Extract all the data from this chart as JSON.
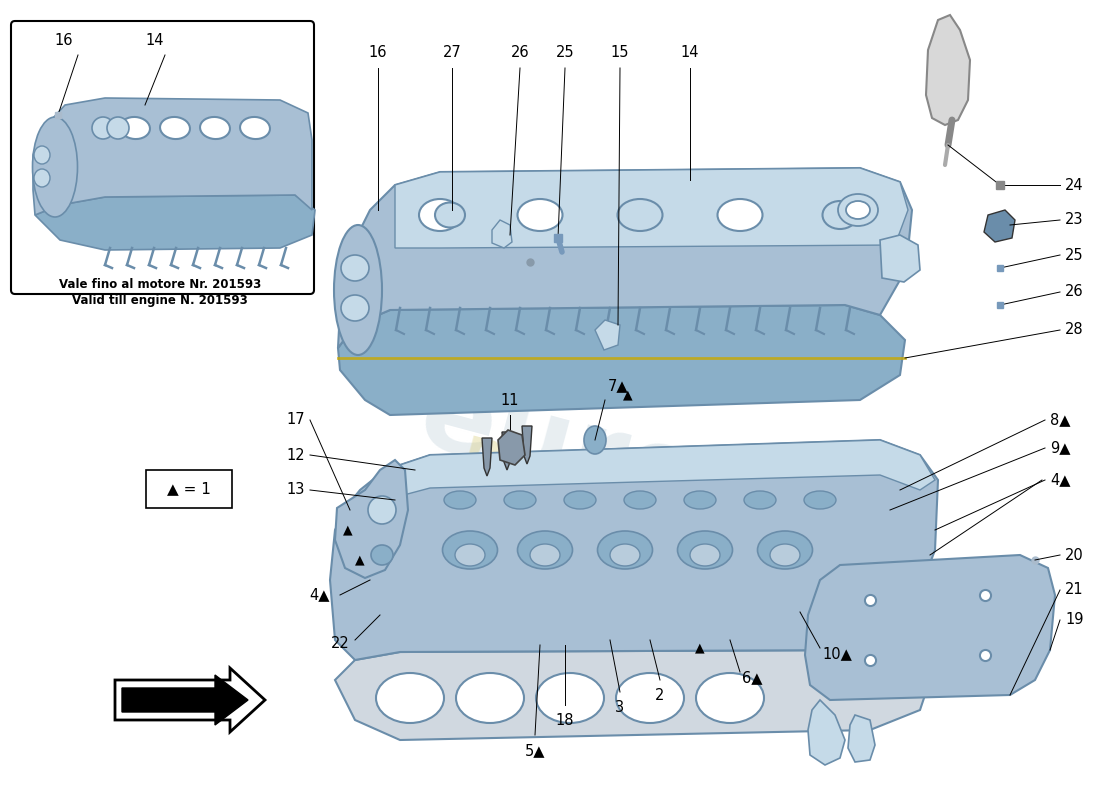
{
  "bg_color": "#ffffff",
  "part_color_main": "#a8bfd4",
  "part_color_dark": "#6a8daa",
  "part_color_light": "#c5dae8",
  "part_color_shadow": "#8aafc8",
  "inset_note_line1": "Vale fino al motore Nr. 201593",
  "inset_note_line2": "Valid till engine N. 201593",
  "legend_text": "▲ = 1",
  "label_fontsize": 10.5
}
